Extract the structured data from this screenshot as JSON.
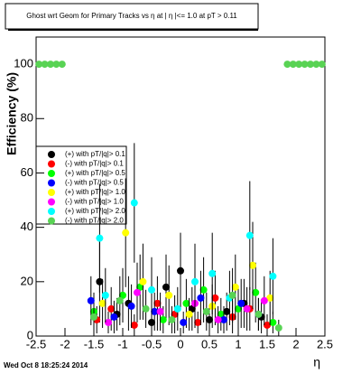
{
  "chart_data": {
    "type": "scatter",
    "title": "Ghost wrt Geom for Primary Tracks vs   η at | η |<= 1.0 at pT > 0.11",
    "x_label": "η",
    "y_label": "Efficiency (%)",
    "footer": "Wed Oct  8 18:25:24 2014",
    "xlim": [
      -2.5,
      2.5
    ],
    "xticks": [
      -2.5,
      -2,
      -1.5,
      -1,
      -0.5,
      0,
      0.5,
      1,
      1.5,
      2,
      2.5
    ],
    "ylim": [
      0,
      110
    ],
    "yticks": [
      0,
      20,
      40,
      60,
      80,
      100
    ],
    "legend": "left",
    "series": [
      {
        "name": "(+) with pT/|q|> 0.1",
        "color": "#000000",
        "x": [
          -1.4,
          -1.1,
          -0.9,
          -0.5,
          -0.25,
          0,
          0.2,
          0.5,
          0.8,
          1.1,
          1.4
        ],
        "values": [
          20,
          8,
          12,
          5,
          18,
          24,
          10,
          6,
          9,
          12,
          7
        ],
        "errors": [
          15,
          6,
          10,
          4,
          12,
          14,
          8,
          5,
          7,
          9,
          6
        ]
      },
      {
        "name": "(-) with pT/|q|> 0.1",
        "color": "#ff0000",
        "x": [
          -1.45,
          -1.2,
          -0.8,
          -0.4,
          -0.1,
          0.3,
          0.6,
          0.9,
          1.2,
          1.5
        ],
        "values": [
          6,
          10,
          4,
          12,
          8,
          5,
          14,
          7,
          10,
          4
        ],
        "errors": [
          5,
          8,
          4,
          10,
          7,
          4,
          10,
          6,
          8,
          4
        ]
      },
      {
        "name": "(+) with pT/|q|> 0.5",
        "color": "#00ff00",
        "x": [
          -1.5,
          -1.0,
          -0.7,
          -0.3,
          0.1,
          0.4,
          0.7,
          1.0,
          1.3,
          1.6
        ],
        "values": [
          9,
          15,
          18,
          6,
          12,
          17,
          8,
          10,
          16,
          5
        ],
        "errors": [
          7,
          10,
          12,
          5,
          9,
          12,
          6,
          8,
          11,
          4
        ]
      },
      {
        "name": "(-) with pT/|q|> 0.5",
        "color": "#0000ff",
        "x": [
          -1.55,
          -1.15,
          -0.85,
          -0.45,
          0.05,
          0.35,
          0.75,
          1.05,
          1.35
        ],
        "values": [
          13,
          7,
          11,
          9,
          5,
          14,
          6,
          12,
          8
        ],
        "errors": [
          9,
          6,
          8,
          7,
          4,
          10,
          5,
          9,
          6
        ]
      },
      {
        "name": "(+) with pT/|q|> 1.0",
        "color": "#ffff00",
        "x": [
          -1.35,
          -0.95,
          -0.65,
          -0.2,
          0.15,
          0.55,
          0.95,
          1.25,
          1.55
        ],
        "values": [
          12,
          38,
          20,
          15,
          8,
          11,
          18,
          26,
          14
        ],
        "errors": [
          9,
          20,
          14,
          11,
          6,
          8,
          12,
          16,
          10
        ]
      },
      {
        "name": "(-) with pT/|q|> 1.0",
        "color": "#ff00ff",
        "x": [
          -1.25,
          -0.75,
          -0.35,
          0.25,
          0.65,
          1.15,
          1.45
        ],
        "values": [
          5,
          16,
          9,
          12,
          6,
          10,
          13
        ],
        "errors": [
          4,
          11,
          7,
          9,
          5,
          8,
          9
        ]
      },
      {
        "name": "(+) with pT/|q|> 2.0",
        "color": "#00ffff",
        "x": [
          -1.4,
          -1.3,
          -0.8,
          -0.5,
          -0.05,
          0.25,
          0.55,
          0.85,
          1.2,
          1.6
        ],
        "values": [
          36,
          15,
          49,
          17,
          10,
          20,
          23,
          14,
          37,
          22
        ],
        "errors": [
          20,
          10,
          22,
          12,
          8,
          14,
          15,
          10,
          20,
          14
        ]
      },
      {
        "name": "(-) with pT/|q|> 2.0",
        "color": "#59d354",
        "x": [
          -2.45,
          -2.35,
          -2.25,
          -2.15,
          -2.05,
          -1.5,
          -1.05,
          -0.6,
          -0.15,
          0.45,
          0.9,
          1.35,
          1.7,
          1.85,
          1.95,
          2.05,
          2.15,
          2.25,
          2.35,
          2.45
        ],
        "values": [
          100,
          100,
          100,
          100,
          100,
          7,
          13,
          10,
          6,
          9,
          15,
          8,
          3,
          100,
          100,
          100,
          100,
          100,
          100,
          100
        ],
        "errors": [
          0,
          0,
          0,
          0,
          0,
          5,
          9,
          7,
          5,
          7,
          10,
          6,
          3,
          0,
          0,
          0,
          0,
          0,
          0,
          0
        ]
      }
    ]
  }
}
